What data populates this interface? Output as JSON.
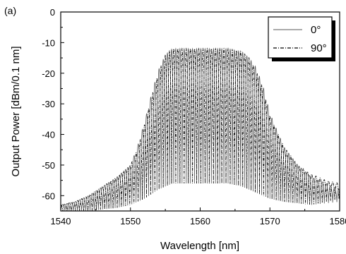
{
  "chart_data": {
    "type": "line",
    "panel_label": "(a)",
    "title": "",
    "xlabel": "Wavelength [nm]",
    "ylabel": "Output Power [dBm/0.1 nm]",
    "xlim": [
      1540,
      1580
    ],
    "ylim": [
      -65,
      0
    ],
    "x_ticks": [
      1540,
      1550,
      1560,
      1570,
      1580
    ],
    "y_ticks": [
      0,
      -10,
      -20,
      -30,
      -40,
      -50,
      -60
    ],
    "grid": false,
    "legend_placement": "top-right",
    "fringe_period_nm": 0.6,
    "series": [
      {
        "name": "0°",
        "color": "#555555",
        "dash": "solid",
        "envelope_top": {
          "x": [
            1540,
            1542,
            1544,
            1546,
            1548,
            1550,
            1551,
            1552,
            1553,
            1554,
            1555,
            1556,
            1560,
            1564,
            1566,
            1567,
            1568,
            1569,
            1570,
            1572,
            1574,
            1576,
            1578,
            1580
          ],
          "y": [
            -63,
            -62,
            -60,
            -57,
            -54,
            -50,
            -44,
            -36,
            -27,
            -19,
            -14,
            -12,
            -12,
            -12,
            -13,
            -15,
            -18,
            -24,
            -33,
            -44,
            -50,
            -54,
            -56,
            -58
          ]
        },
        "envelope_bottom": {
          "x": [
            1540,
            1544,
            1548,
            1550,
            1552,
            1554,
            1556,
            1560,
            1564,
            1566,
            1568,
            1570,
            1572,
            1576,
            1580
          ],
          "y": [
            -65,
            -65,
            -64,
            -63,
            -61,
            -58,
            -56,
            -56,
            -56,
            -57,
            -59,
            -61,
            -62,
            -63,
            -62
          ]
        },
        "phase": 0
      },
      {
        "name": "90°",
        "color": "#000000",
        "dash": "dashdot",
        "envelope_top": {
          "x": [
            1540,
            1542,
            1544,
            1546,
            1548,
            1550,
            1551,
            1552,
            1553,
            1554,
            1555,
            1556,
            1560,
            1564,
            1566,
            1567,
            1568,
            1569,
            1570,
            1572,
            1574,
            1576,
            1578,
            1580
          ],
          "y": [
            -63,
            -62,
            -60,
            -57,
            -54,
            -50,
            -45,
            -37,
            -28,
            -20,
            -14,
            -12,
            -12,
            -12,
            -13,
            -15,
            -19,
            -25,
            -34,
            -44,
            -50,
            -53,
            -55,
            -56
          ]
        },
        "envelope_bottom": {
          "x": [
            1540,
            1544,
            1548,
            1550,
            1552,
            1554,
            1556,
            1560,
            1564,
            1566,
            1568,
            1570,
            1572,
            1576,
            1580
          ],
          "y": [
            -65,
            -65,
            -64,
            -63,
            -61,
            -58,
            -56,
            -56,
            -56,
            -57,
            -59,
            -61,
            -62,
            -63,
            -61
          ]
        },
        "phase": 0.5
      }
    ]
  }
}
